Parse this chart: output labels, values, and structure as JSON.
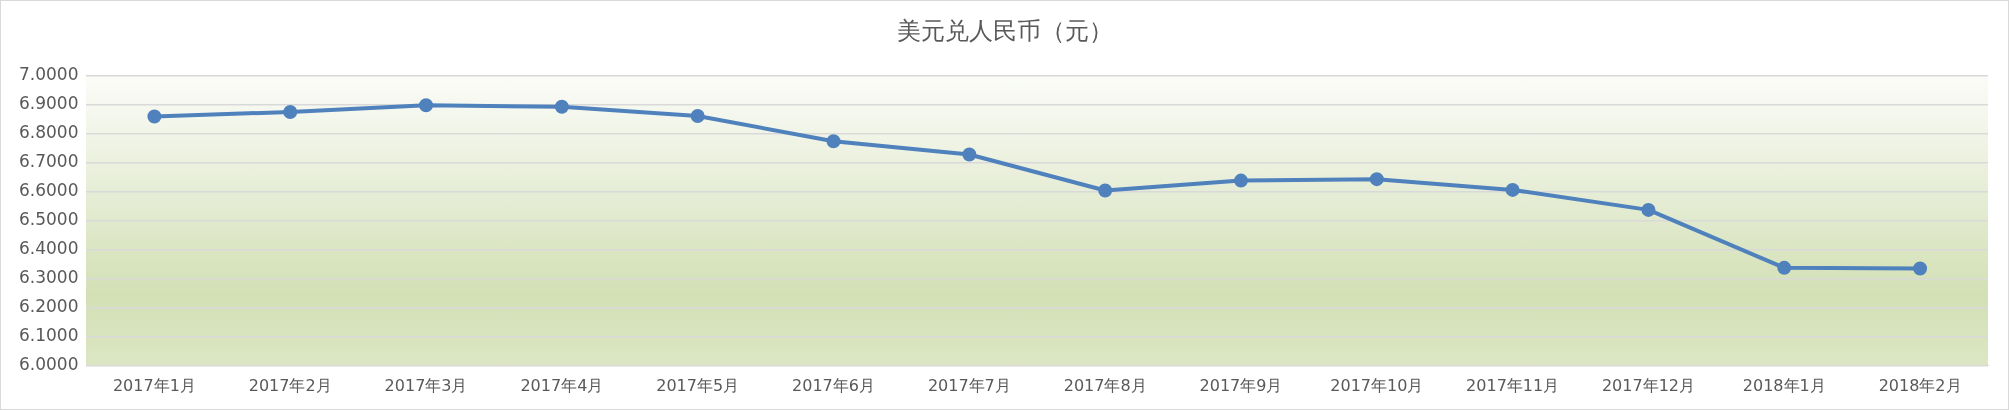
{
  "chart_data": {
    "type": "line",
    "title": "美元兑人民币（元）",
    "categories": [
      "2017年1月",
      "2017年2月",
      "2017年3月",
      "2017年4月",
      "2017年5月",
      "2017年6月",
      "2017年7月",
      "2017年8月",
      "2017年9月",
      "2017年10月",
      "2017年11月",
      "2017年12月",
      "2018年1月",
      "2018年2月"
    ],
    "series": [
      {
        "color": "#4f81bd",
        "values": [
          6.86,
          6.876,
          6.899,
          6.894,
          6.862,
          6.775,
          6.729,
          6.605,
          6.639,
          6.644,
          6.607,
          6.538,
          6.338,
          6.336
        ]
      }
    ],
    "ylim": [
      6,
      7
    ],
    "yticks": [
      {
        "value": 6,
        "label": "6.0000"
      },
      {
        "value": 6.1,
        "label": "6.1000"
      },
      {
        "value": 6.2,
        "label": "6.2000"
      },
      {
        "value": 6.3,
        "label": "6.3000"
      },
      {
        "value": 6.4,
        "label": "6.4000"
      },
      {
        "value": 6.5,
        "label": "6.5000"
      },
      {
        "value": 6.6,
        "label": "6.6000"
      },
      {
        "value": 6.7,
        "label": "6.7000"
      },
      {
        "value": 6.8,
        "label": "6.8000"
      },
      {
        "value": 6.9,
        "label": "6.9000"
      },
      {
        "value": 7,
        "label": "7.0000"
      }
    ],
    "grid": "y",
    "legend": false,
    "marker": "circle",
    "line_style": "solid"
  }
}
